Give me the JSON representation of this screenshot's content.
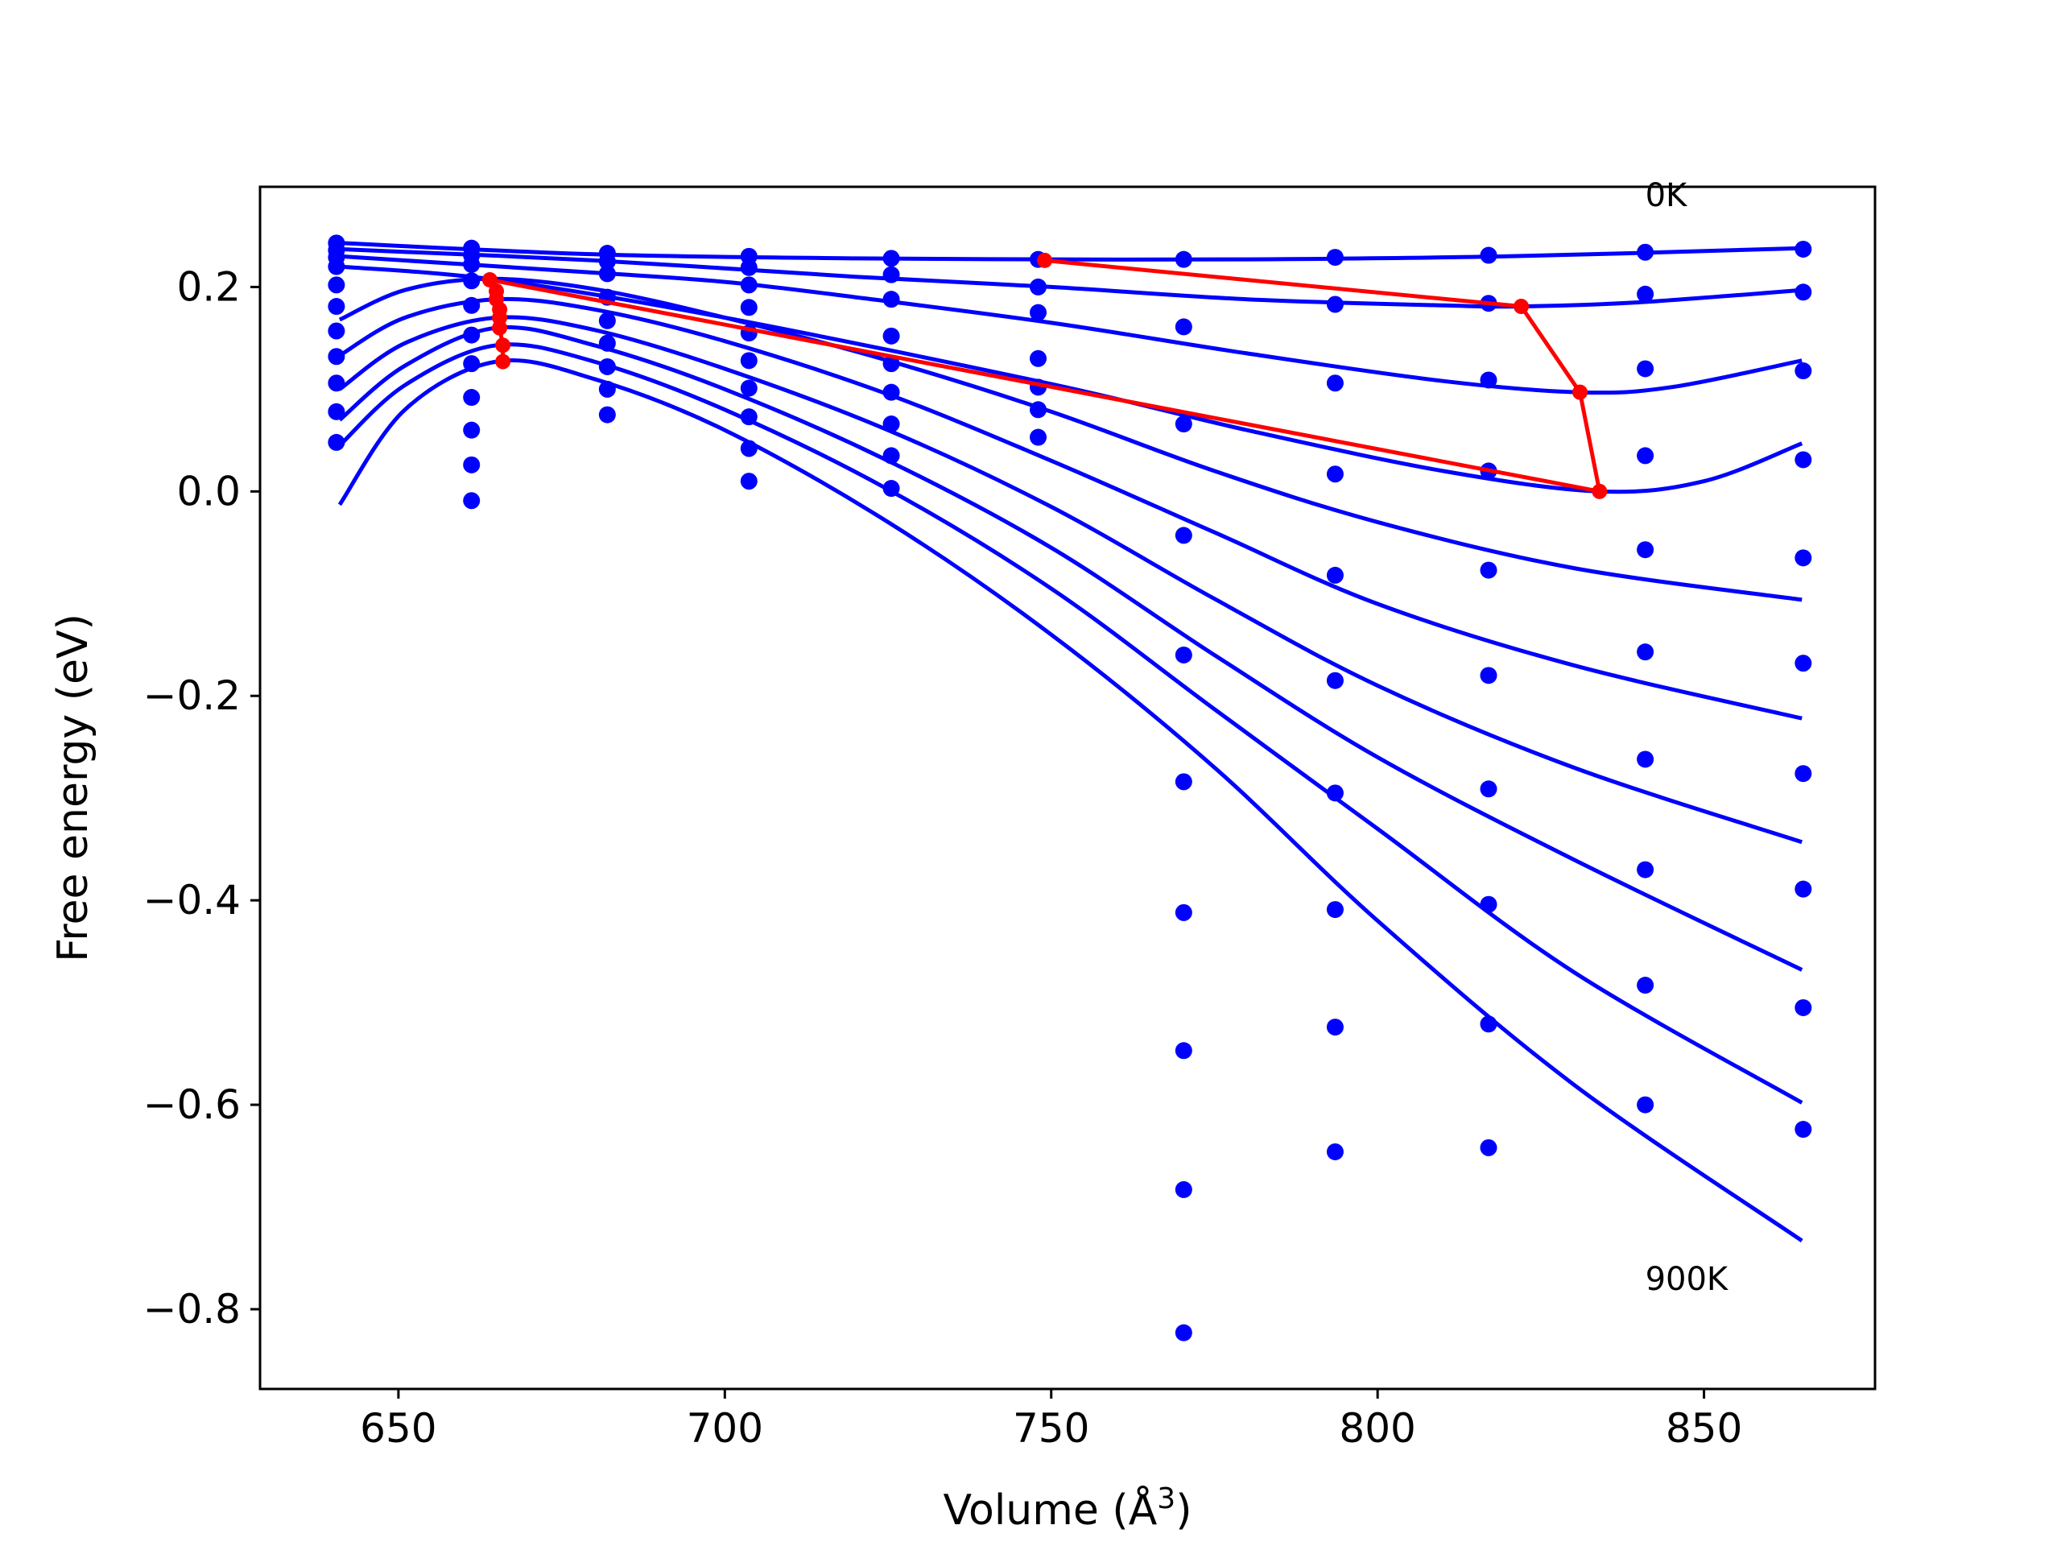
{
  "chart_data": {
    "type": "line",
    "title": "",
    "xlabel": "Volume (Å",
    "xlabel_sup": "3",
    "xlabel_close": ")",
    "ylabel": "Free energy (eV)",
    "xlim": [
      628.8,
      876.2
    ],
    "ylim": [
      -0.878,
      0.298
    ],
    "xticks": [
      650,
      700,
      750,
      800,
      850
    ],
    "xtick_labels": [
      "650",
      "700",
      "750",
      "800",
      "850"
    ],
    "yticks": [
      0.2,
      0.0,
      -0.2,
      -0.4,
      -0.6,
      -0.8
    ],
    "ytick_labels": [
      "0.2",
      "0.0",
      "−0.2",
      "−0.4",
      "−0.6",
      "−0.8"
    ],
    "grid": false,
    "colors": {
      "series": "#0000ff",
      "minima": "#ff0000",
      "axes": "#000000"
    },
    "volumes": [
      640.5,
      661.2,
      682.0,
      703.7,
      725.5,
      748.0,
      770.3,
      793.5,
      817.0,
      841.0,
      865.2
    ],
    "series": [
      {
        "temperature": "0K",
        "points": [
          0.243,
          0.238,
          0.233,
          0.23,
          0.228,
          0.227,
          0.227,
          0.229,
          0.231,
          0.234,
          0.237
        ],
        "fit": [
          [
            641,
            0.243
          ],
          [
            680,
            0.232
          ],
          [
            720,
            0.228
          ],
          [
            750,
            0.227
          ],
          [
            780,
            0.227
          ],
          [
            820,
            0.23
          ],
          [
            865,
            0.238
          ]
        ]
      },
      {
        "temperature": "",
        "points": [
          0.236,
          0.231,
          0.225,
          0.219,
          0.212,
          0.2,
          0.161,
          0.183,
          0.184,
          0.193,
          0.195
        ],
        "fit": [
          [
            641,
            0.237
          ],
          [
            680,
            0.226
          ],
          [
            720,
            0.21
          ],
          [
            750,
            0.2
          ],
          [
            780,
            0.188
          ],
          [
            810,
            0.182
          ],
          [
            822,
            0.181
          ],
          [
            840,
            0.185
          ],
          [
            865,
            0.197
          ]
        ]
      },
      {
        "temperature": "",
        "points": [
          0.229,
          0.222,
          0.213,
          0.202,
          0.188,
          0.175,
          0.066,
          0.106,
          0.109,
          0.12,
          0.118
        ],
        "fit": [
          [
            641,
            0.23
          ],
          [
            680,
            0.214
          ],
          [
            700,
            0.205
          ],
          [
            720,
            0.19
          ],
          [
            750,
            0.165
          ],
          [
            780,
            0.135
          ],
          [
            810,
            0.108
          ],
          [
            831,
            0.097
          ],
          [
            845,
            0.102
          ],
          [
            865,
            0.128
          ]
        ]
      },
      {
        "temperature": "",
        "points": [
          0.22,
          0.206,
          0.19,
          0.18,
          0.152,
          0.13,
          -0.043,
          0.017,
          0.02,
          0.035,
          0.031
        ],
        "fit": [
          [
            641,
            0.22
          ],
          [
            665,
            0.207
          ],
          [
            700,
            0.17
          ],
          [
            750,
            0.105
          ],
          [
            780,
            0.06
          ],
          [
            810,
            0.02
          ],
          [
            834,
            0.0
          ],
          [
            850,
            0.01
          ],
          [
            865,
            0.047
          ]
        ]
      },
      {
        "temperature": "",
        "points": [
          0.202,
          0.182,
          0.167,
          0.155,
          0.125,
          0.102,
          -0.16,
          -0.082,
          -0.077,
          -0.057,
          -0.065
        ],
        "fit": [
          [
            641,
            0.168
          ],
          [
            651,
            0.197
          ],
          [
            664,
            0.208
          ],
          [
            680,
            0.198
          ],
          [
            700,
            0.17
          ],
          [
            725,
            0.128
          ],
          [
            750,
            0.078
          ],
          [
            775,
            0.02
          ],
          [
            800,
            -0.03
          ],
          [
            830,
            -0.075
          ],
          [
            865,
            -0.106
          ]
        ]
      },
      {
        "temperature": "",
        "points": [
          0.181,
          0.153,
          0.145,
          0.128,
          0.097,
          0.08,
          -0.284,
          -0.185,
          -0.18,
          -0.157,
          -0.168
        ],
        "fit": [
          [
            641,
            0.133
          ],
          [
            651,
            0.17
          ],
          [
            665,
            0.188
          ],
          [
            680,
            0.178
          ],
          [
            700,
            0.147
          ],
          [
            725,
            0.095
          ],
          [
            750,
            0.03
          ],
          [
            775,
            -0.04
          ],
          [
            800,
            -0.11
          ],
          [
            830,
            -0.17
          ],
          [
            865,
            -0.222
          ]
        ]
      },
      {
        "temperature": "",
        "points": [
          0.157,
          0.125,
          0.122,
          0.101,
          0.066,
          0.053,
          -0.412,
          -0.295,
          -0.291,
          -0.262,
          -0.276
        ],
        "fit": [
          [
            641,
            0.1
          ],
          [
            651,
            0.145
          ],
          [
            665,
            0.17
          ],
          [
            680,
            0.158
          ],
          [
            700,
            0.12
          ],
          [
            725,
            0.06
          ],
          [
            750,
            -0.015
          ],
          [
            775,
            -0.105
          ],
          [
            800,
            -0.19
          ],
          [
            830,
            -0.27
          ],
          [
            865,
            -0.343
          ]
        ]
      },
      {
        "temperature": "",
        "points": [
          0.132,
          0.092,
          0.1,
          0.073,
          0.035,
          null,
          -0.547,
          -0.409,
          -0.404,
          -0.37,
          -0.389
        ],
        "fit": [
          [
            641,
            0.07
          ],
          [
            651,
            0.123
          ],
          [
            665,
            0.16
          ],
          [
            680,
            0.143
          ],
          [
            700,
            0.1
          ],
          [
            725,
            0.03
          ],
          [
            750,
            -0.055
          ],
          [
            775,
            -0.16
          ],
          [
            800,
            -0.26
          ],
          [
            830,
            -0.36
          ],
          [
            865,
            -0.468
          ]
        ]
      },
      {
        "temperature": "",
        "points": [
          0.106,
          0.06,
          0.075,
          0.042,
          0.003,
          null,
          -0.683,
          -0.524,
          -0.521,
          -0.483,
          -0.505
        ],
        "fit": [
          [
            641,
            0.045
          ],
          [
            651,
            0.104
          ],
          [
            665,
            0.143
          ],
          [
            680,
            0.127
          ],
          [
            700,
            0.08
          ],
          [
            725,
            0.002
          ],
          [
            750,
            -0.095
          ],
          [
            775,
            -0.213
          ],
          [
            800,
            -0.33
          ],
          [
            830,
            -0.47
          ],
          [
            865,
            -0.598
          ]
        ]
      },
      {
        "temperature": "900K",
        "points": [
          0.078,
          0.026,
          null,
          0.01,
          null,
          null,
          -0.823,
          -0.646,
          -0.642,
          -0.6,
          -0.624
        ],
        "fit": [
          [
            641,
            -0.013
          ],
          [
            651,
            0.08
          ],
          [
            665,
            0.127
          ],
          [
            680,
            0.11
          ],
          [
            700,
            0.06
          ],
          [
            725,
            -0.03
          ],
          [
            750,
            -0.14
          ],
          [
            775,
            -0.27
          ],
          [
            800,
            -0.42
          ],
          [
            830,
            -0.58
          ],
          [
            865,
            -0.733
          ]
        ]
      }
    ],
    "extra_points": [
      [
        640.5,
        0.048
      ],
      [
        661.2,
        -0.009
      ]
    ],
    "minima_path": [
      [
        749,
        0.226
      ],
      [
        822,
        0.181
      ],
      [
        831,
        0.097
      ],
      [
        834,
        0.0
      ],
      [
        664,
        0.207
      ],
      [
        665,
        0.196
      ],
      [
        665,
        0.188
      ],
      [
        665.5,
        0.178
      ],
      [
        665.5,
        0.17
      ],
      [
        665.5,
        0.16
      ],
      [
        666,
        0.143
      ],
      [
        666,
        0.127
      ]
    ],
    "annotations": [
      {
        "text": "0K",
        "x": 841,
        "y": 0.29
      },
      {
        "text": "900K",
        "x": 841,
        "y": -0.77
      }
    ]
  }
}
